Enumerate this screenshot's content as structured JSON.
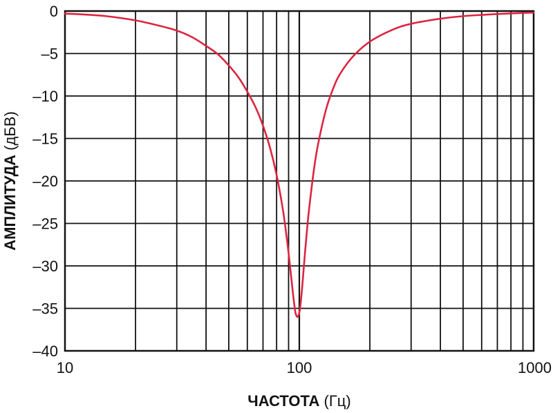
{
  "chart_data": {
    "type": "line",
    "x_scale": "log",
    "xlim": [
      10,
      1000
    ],
    "ylim": [
      -40,
      0
    ],
    "grid": true,
    "xlabel": {
      "bold": "ЧАСТОТА",
      "unit": "(Гц)"
    },
    "ylabel": {
      "bold": "АМПЛИТУДА",
      "unit": "(дБВ)"
    },
    "x_tick_labels": [
      "10",
      "100",
      "1000"
    ],
    "x_tick_values": [
      10,
      100,
      1000
    ],
    "y_tick_labels": [
      "0",
      "–5",
      "–10",
      "–15",
      "–20",
      "–25",
      "–30",
      "–35",
      "–40"
    ],
    "y_tick_values": [
      0,
      -5,
      -10,
      -15,
      -20,
      -25,
      -30,
      -35,
      -40
    ],
    "line_color": "#dc2440",
    "series": [
      {
        "x": [
          10,
          12,
          15,
          20,
          25,
          30,
          35,
          40,
          45,
          50,
          55,
          60,
          65,
          70,
          75,
          80,
          85,
          88,
          90,
          92,
          94,
          96,
          97,
          98,
          99,
          100,
          101,
          102,
          103,
          104,
          106,
          108,
          110,
          115,
          120,
          130,
          140,
          150,
          170,
          200,
          250,
          300,
          400,
          500,
          600,
          700,
          800,
          900,
          1000
        ],
        "values": [
          -0.3,
          -0.4,
          -0.6,
          -1.1,
          -1.7,
          -2.3,
          -3.1,
          -4.1,
          -5.1,
          -6.4,
          -7.8,
          -9.5,
          -11.3,
          -13.5,
          -16.1,
          -19.3,
          -23.3,
          -26.3,
          -28.5,
          -30.9,
          -33.3,
          -35.3,
          -35.8,
          -36.0,
          -35.9,
          -35.5,
          -34.7,
          -33.6,
          -32.3,
          -30.9,
          -28.1,
          -25.6,
          -23.4,
          -19.0,
          -15.8,
          -11.6,
          -9.0,
          -7.3,
          -5.3,
          -3.6,
          -2.2,
          -1.5,
          -0.9,
          -0.6,
          -0.45,
          -0.35,
          -0.28,
          -0.22,
          -0.18
        ]
      }
    ]
  }
}
